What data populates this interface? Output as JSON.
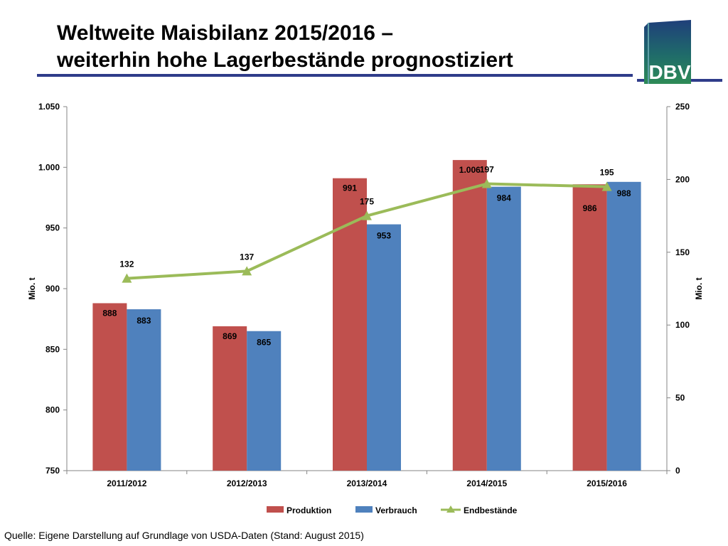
{
  "header": {
    "title_line1": "Weltweite Maisbilanz 2015/2016 –",
    "title_line2": "weiterhin hohe Lagerbestände prognostiziert",
    "logo_text": "DBV"
  },
  "footer": {
    "source": "Quelle: Eigene Darstellung auf Grundlage von USDA-Daten (Stand: August 2015)"
  },
  "colors": {
    "produktion": "#c0504d",
    "verbrauch": "#4f81bd",
    "endbestaende": "#9bbb59",
    "title_rule": "#2f3c8a",
    "logo_green": "#2e8b57"
  },
  "chart_data": {
    "type": "bar",
    "categories": [
      "2011/2012",
      "2012/2013",
      "2013/2014",
      "2014/2015",
      "2015/2016"
    ],
    "series": [
      {
        "name": "Produktion",
        "type": "bar",
        "axis": "left",
        "values": [
          888,
          869,
          991,
          1006,
          986
        ],
        "labels": [
          "888",
          "869",
          "991",
          "1.006",
          "986"
        ]
      },
      {
        "name": "Verbrauch",
        "type": "bar",
        "axis": "left",
        "values": [
          883,
          865,
          953,
          984,
          988
        ],
        "labels": [
          "883",
          "865",
          "953",
          "984",
          "988"
        ]
      },
      {
        "name": "Endbestände",
        "type": "line",
        "axis": "right",
        "marker": "triangle",
        "values": [
          132,
          137,
          175,
          197,
          195
        ],
        "labels": [
          "132",
          "137",
          "175",
          "197",
          "195"
        ]
      }
    ],
    "ylabel_left": "Mio. t",
    "ylabel_right": "Mio. t",
    "ylim_left": [
      750,
      1050
    ],
    "ylim_right": [
      0,
      250
    ],
    "yticks_left": [
      "750",
      "800",
      "850",
      "900",
      "950",
      "1.000",
      "1.050"
    ],
    "yticks_right": [
      "0",
      "50",
      "100",
      "150",
      "200",
      "250"
    ],
    "grid": false,
    "legend_position": "bottom"
  }
}
